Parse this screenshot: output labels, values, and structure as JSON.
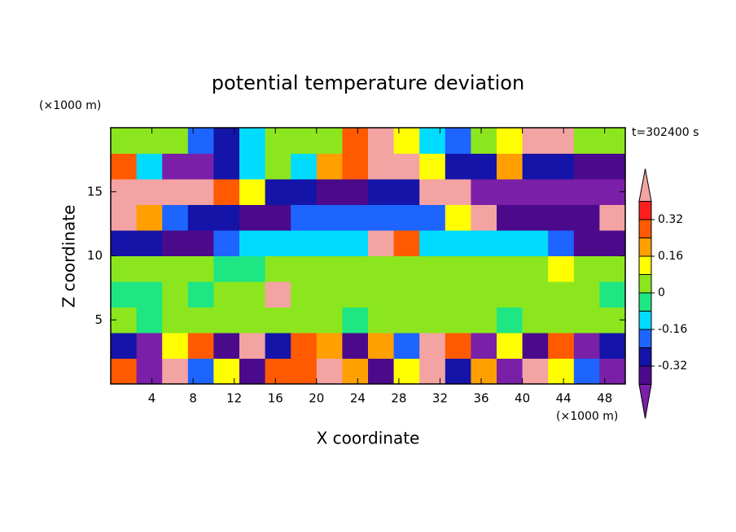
{
  "chart_data": {
    "type": "contour",
    "title": "potential temperature deviation",
    "x_label": "X coordinate",
    "y_label": "Z coordinate",
    "x_unit": "(×1000 m)",
    "y_unit": "(×1000 m)",
    "annotation": "t=302400 s",
    "xlim": [
      0,
      50
    ],
    "ylim": [
      0,
      20
    ],
    "xticks": [
      4,
      8,
      12,
      16,
      20,
      24,
      28,
      32,
      36,
      40,
      44,
      48
    ],
    "yticks": [
      5,
      10,
      15
    ],
    "x": [
      1.25,
      3.75,
      6.25,
      8.75,
      11.25,
      13.75,
      16.25,
      18.75,
      21.25,
      23.75,
      26.25,
      28.75,
      31.25,
      33.75,
      36.25,
      38.75,
      41.25,
      43.75,
      46.25,
      48.75
    ],
    "y": [
      1,
      3,
      5,
      7,
      9,
      11,
      13,
      15,
      17,
      19
    ],
    "z": [
      [
        0.3,
        -0.45,
        0.45,
        -0.2,
        0.1,
        -0.4,
        0.3,
        0.3,
        0.45,
        0.2,
        -0.35,
        0.1,
        0.45,
        -0.3,
        0.2,
        -0.45,
        0.45,
        0.1,
        -0.2,
        -0.45
      ],
      [
        -0.3,
        -0.45,
        0.1,
        0.3,
        -0.35,
        0.45,
        -0.3,
        0.3,
        0.2,
        -0.4,
        0.2,
        -0.2,
        0.45,
        0.3,
        -0.45,
        0.1,
        -0.4,
        0.3,
        -0.45,
        -0.3
      ],
      [
        0.02,
        -0.02,
        0.02,
        0.02,
        0.02,
        0.02,
        0.02,
        0.02,
        0.02,
        -0.02,
        0.02,
        0.02,
        0.02,
        0.02,
        0.02,
        -0.02,
        0.02,
        0.02,
        0.02,
        0.02
      ],
      [
        -0.02,
        -0.02,
        0.02,
        -0.02,
        0.02,
        0.02,
        0.45,
        0.02,
        0.02,
        0.02,
        0.02,
        0.02,
        0.02,
        0.02,
        0.02,
        0.02,
        0.02,
        0.02,
        0.02,
        -0.02
      ],
      [
        0.02,
        0.02,
        0.02,
        0.02,
        -0.02,
        -0.02,
        0.02,
        0.02,
        0.02,
        0.02,
        0.02,
        0.02,
        0.02,
        0.02,
        0.02,
        0.02,
        0.05,
        0.1,
        0.02,
        0.02
      ],
      [
        -0.3,
        -0.3,
        -0.35,
        -0.35,
        -0.2,
        -0.1,
        -0.1,
        -0.1,
        -0.1,
        -0.1,
        0.45,
        0.3,
        -0.1,
        -0.1,
        -0.1,
        -0.1,
        -0.1,
        -0.2,
        -0.35,
        -0.35
      ],
      [
        0.45,
        0.2,
        -0.2,
        -0.3,
        -0.3,
        -0.35,
        -0.35,
        -0.2,
        -0.2,
        -0.2,
        -0.2,
        -0.2,
        -0.2,
        0.1,
        0.45,
        -0.35,
        -0.35,
        -0.35,
        -0.35,
        0.45
      ],
      [
        0.45,
        0.45,
        0.45,
        0.4,
        0.3,
        0.1,
        -0.3,
        -0.3,
        -0.35,
        -0.35,
        -0.3,
        -0.3,
        0.45,
        0.45,
        -0.45,
        -0.45,
        -0.45,
        -0.45,
        -0.45,
        -0.45
      ],
      [
        0.3,
        -0.1,
        -0.45,
        -0.45,
        -0.3,
        -0.1,
        0.05,
        -0.1,
        0.2,
        0.3,
        0.45,
        0.45,
        0.1,
        -0.3,
        -0.3,
        0.2,
        -0.3,
        -0.3,
        -0.35,
        -0.35
      ],
      [
        0.02,
        0.02,
        0.0,
        -0.2,
        -0.3,
        -0.1,
        0.02,
        0.02,
        0.05,
        0.3,
        0.45,
        0.1,
        -0.1,
        -0.2,
        0.02,
        0.1,
        0.45,
        0.45,
        0.02,
        0.02
      ]
    ],
    "levels": [
      -0.4,
      -0.32,
      -0.24,
      -0.16,
      -0.08,
      0,
      0.08,
      0.16,
      0.24,
      0.32,
      0.4
    ],
    "colors": [
      "#7a1fa8",
      "#4b0a8c",
      "#1414a8",
      "#1e64ff",
      "#00dcff",
      "#1ee682",
      "#8ce61e",
      "#ffff00",
      "#ffa000",
      "#ff5a00",
      "#ff1e1e",
      "#f4a3a3"
    ],
    "colorbar_ticks": [
      -0.32,
      -0.16,
      0,
      0.16,
      0.32
    ]
  }
}
